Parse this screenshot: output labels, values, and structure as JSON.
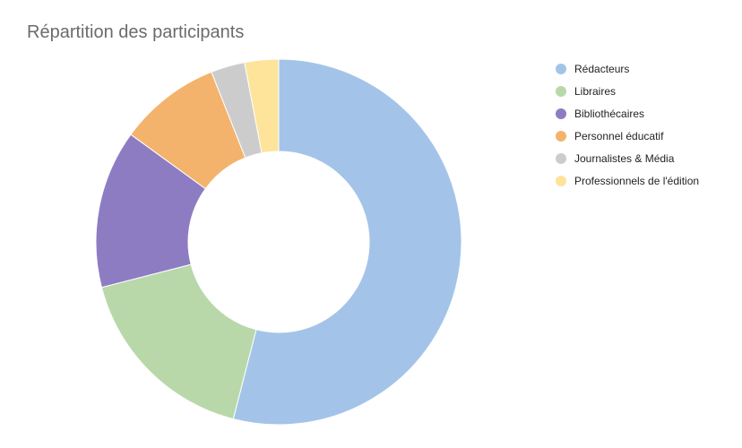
{
  "chart_data": {
    "type": "pie",
    "donut": true,
    "title": "Répartition des participants",
    "legend_position": "right",
    "categories": [
      "Rédacteurs",
      "Libraires",
      "Bibliothécaires",
      "Personnel éducatif",
      "Journalistes & Média",
      "Professionnels de l'édition"
    ],
    "values": [
      54,
      17,
      14,
      9,
      3,
      3
    ],
    "colors": [
      "#a3c4e8",
      "#b8d8aa",
      "#8e7cc3",
      "#f3b36c",
      "#cccccc",
      "#fde49a"
    ]
  }
}
